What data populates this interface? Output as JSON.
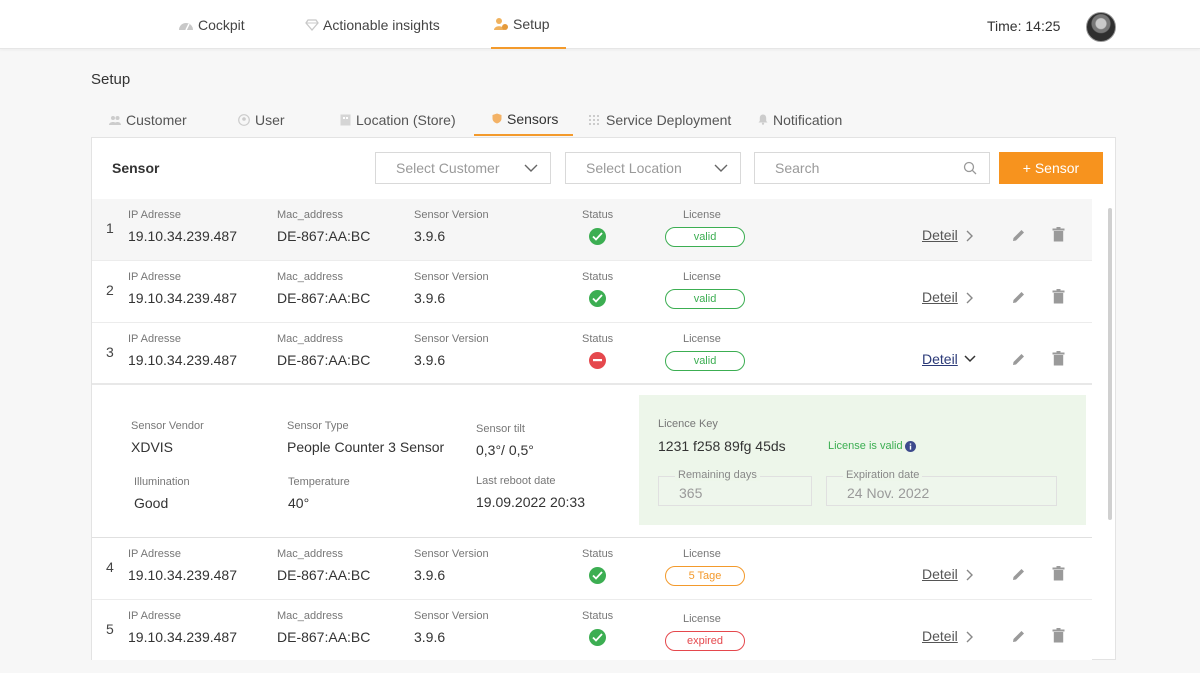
{
  "nav": {
    "items": [
      {
        "label": "Cockpit",
        "icon": "gauge-icon"
      },
      {
        "label": "Actionable insights",
        "icon": "diamond-icon"
      },
      {
        "label": "Setup",
        "icon": "setup-icon"
      }
    ],
    "time": "Time: 14:25"
  },
  "page": {
    "title": "Setup"
  },
  "tabs": [
    {
      "label": "Customer"
    },
    {
      "label": "User"
    },
    {
      "label": "Location (Store)"
    },
    {
      "label": "Sensors"
    },
    {
      "label": "Service Deployment"
    },
    {
      "label": "Notification"
    }
  ],
  "toolbar": {
    "title": "Sensor",
    "select_customer": "Select Customer",
    "select_location": "Select Location",
    "search_placeholder": "Search",
    "add_button": "+ Sensor"
  },
  "columns": {
    "ip": "IP Adresse",
    "mac": "Mac_address",
    "version": "Sensor Version",
    "status": "Status",
    "license": "License"
  },
  "detail_label": "Deteil",
  "rows": [
    {
      "index": "1",
      "ip": "19.10.34.239.487",
      "mac": "DE-867:AA:BC",
      "version": "3.9.6",
      "status": "ok",
      "license": "valid"
    },
    {
      "index": "2",
      "ip": "19.10.34.239.487",
      "mac": "DE-867:AA:BC",
      "version": "3.9.6",
      "status": "ok",
      "license": "valid"
    },
    {
      "index": "3",
      "ip": "19.10.34.239.487",
      "mac": "DE-867:AA:BC",
      "version": "3.9.6",
      "status": "error",
      "license": "valid"
    },
    {
      "index": "4",
      "ip": "19.10.34.239.487",
      "mac": "DE-867:AA:BC",
      "version": "3.9.6",
      "status": "ok",
      "license": "5 Tage"
    },
    {
      "index": "5",
      "ip": "19.10.34.239.487",
      "mac": "DE-867:AA:BC",
      "version": "3.9.6",
      "status": "ok",
      "license": "expired"
    }
  ],
  "expanded": {
    "vendor_label": "Sensor Vendor",
    "vendor": "XDVIS",
    "type_label": "Sensor Type",
    "type": "People Counter 3 Sensor",
    "tilt_label": "Sensor tilt",
    "tilt": "0,3°/ 0,5°",
    "illumination_label": "Illumination",
    "illumination": "Good",
    "temperature_label": "Temperature",
    "temperature": "40°",
    "reboot_label": "Last reboot date",
    "reboot": "19.09.2022 20:33",
    "licence_key_label": "Licence Key",
    "licence_key": "1231 f258 89fg 45ds",
    "license_status": "License is valid",
    "remaining_label": "Remaining  days",
    "remaining": "365",
    "expiration_label": "Expiration date",
    "expiration": "24 Nov. 2022"
  },
  "colors": {
    "accent": "#f7931e",
    "ok": "#3cae52",
    "error": "#e5484d",
    "badge_valid": "#3cae52",
    "badge_warn": "#f39a2c",
    "badge_expired": "#e5484d"
  }
}
